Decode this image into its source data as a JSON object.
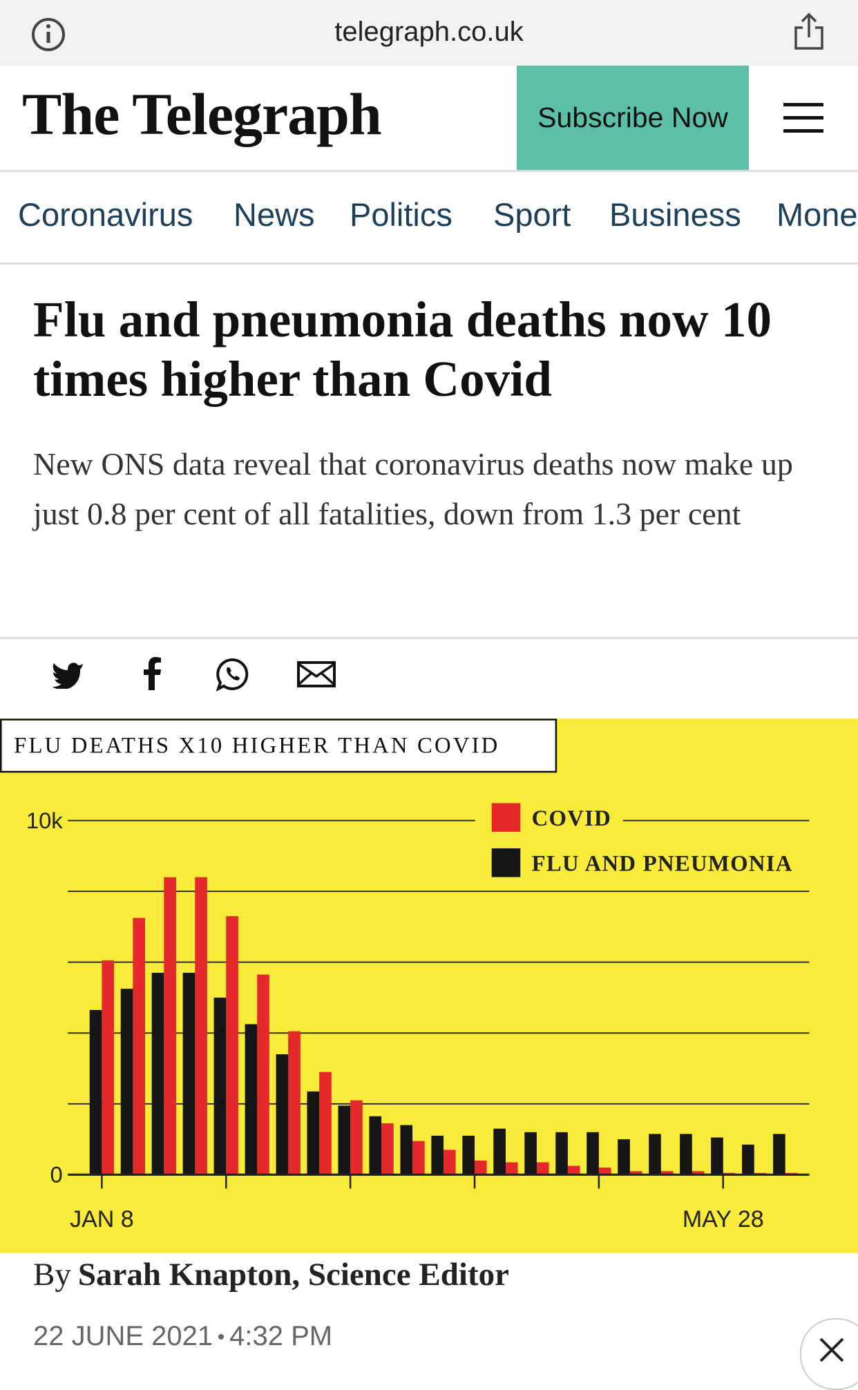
{
  "browser": {
    "url": "telegraph.co.uk"
  },
  "header": {
    "logo": "The Telegraph",
    "subscribe": "Subscribe Now"
  },
  "nav": [
    "Coronavirus",
    "News",
    "Politics",
    "Sport",
    "Business",
    "Money"
  ],
  "article": {
    "headline": "Flu and pneumonia deaths now 10 times higher than Covid",
    "standfirst": "New ONS data reveal that coronavirus deaths now make up just 0.8 per cent of all fatalities, down from 1.3 per cent",
    "byline_prefix": "By",
    "author": "Sarah Knapton, Science Editor",
    "date": "22 JUNE 2021",
    "time": "4:32 PM"
  },
  "chart_data": {
    "type": "bar",
    "title": "FLU DEATHS X10 HIGHER THAN COVID",
    "categories": [
      "JAN 8",
      null,
      null,
      null,
      null,
      null,
      null,
      null,
      null,
      null,
      null,
      null,
      null,
      null,
      null,
      null,
      null,
      null,
      null,
      null,
      "MAY 28",
      null,
      null
    ],
    "series": [
      {
        "name": "COVID",
        "color": "#e3292b",
        "values": [
          6050,
          7250,
          8400,
          8400,
          7300,
          5650,
          4050,
          2900,
          2100,
          1450,
          950,
          700,
          400,
          350,
          350,
          250,
          200,
          100,
          100,
          100,
          50,
          50,
          50
        ]
      },
      {
        "name": "FLU AND PNEUMONIA",
        "color": "#161616",
        "values": [
          4650,
          5250,
          5700,
          5700,
          5000,
          4250,
          3400,
          2350,
          1950,
          1650,
          1400,
          1100,
          1100,
          1300,
          1200,
          1200,
          1200,
          1000,
          1150,
          1150,
          1050,
          850,
          1150
        ]
      }
    ],
    "ylim": [
      0,
      10000
    ],
    "yticks": [
      0,
      {
        "value": 10000,
        "label": "10k"
      }
    ],
    "grid_lines": [
      2000,
      4000,
      6000,
      8000
    ],
    "background_color": "#f8eb3a"
  }
}
